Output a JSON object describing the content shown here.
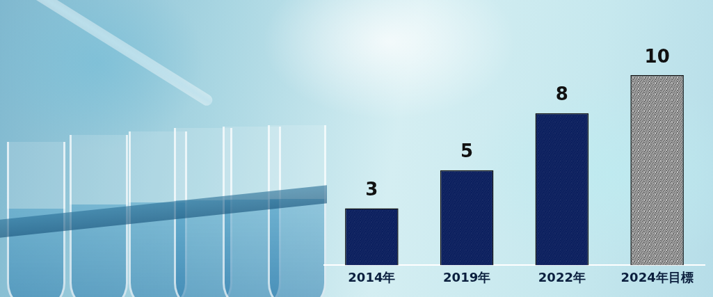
{
  "chart_data": {
    "type": "bar",
    "categories": [
      "2014年",
      "2019年",
      "2022年",
      "2024年目標"
    ],
    "values": [
      3,
      5,
      8,
      10
    ],
    "colors": [
      "#0b1f5e",
      "#0b1f5e",
      "#0b1f5e",
      "#6e6e6e"
    ],
    "ylim": [
      0,
      10
    ],
    "data_labels": true,
    "grid": false,
    "tick_labels": "x"
  }
}
